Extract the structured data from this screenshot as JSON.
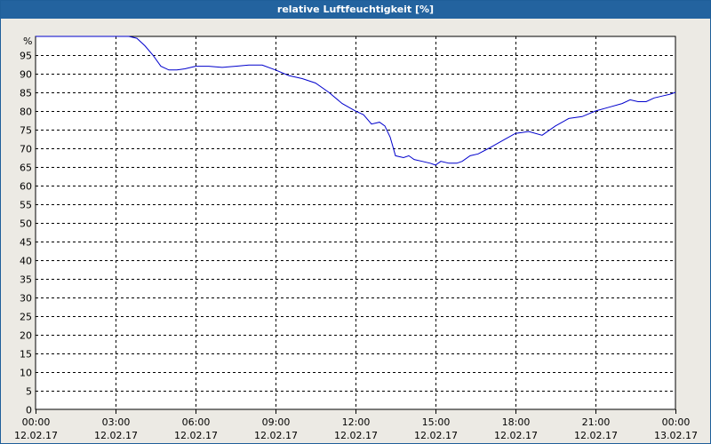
{
  "window": {
    "title": "relative Luftfeuchtigkeit [%]"
  },
  "chart_data": {
    "type": "line",
    "title": "relative Luftfeuchtigkeit [%]",
    "y_unit_label": "%",
    "ylim": [
      0,
      100
    ],
    "y_ticks": [
      0,
      5,
      10,
      15,
      20,
      25,
      30,
      35,
      40,
      45,
      50,
      55,
      60,
      65,
      70,
      75,
      80,
      85,
      90,
      95
    ],
    "x_ticks": [
      {
        "time": "00:00",
        "date": "12.02.17"
      },
      {
        "time": "03:00",
        "date": "12.02.17"
      },
      {
        "time": "06:00",
        "date": "12.02.17"
      },
      {
        "time": "09:00",
        "date": "12.02.17"
      },
      {
        "time": "12:00",
        "date": "12.02.17"
      },
      {
        "time": "15:00",
        "date": "12.02.17"
      },
      {
        "time": "18:00",
        "date": "12.02.17"
      },
      {
        "time": "21:00",
        "date": "12.02.17"
      },
      {
        "time": "00:00",
        "date": "13.02.17"
      }
    ],
    "x_range_hours": [
      0,
      24
    ],
    "grid": true,
    "colors": {
      "series": "#0000cc",
      "grid": "#000000",
      "plot_background": "#ffffff",
      "panel_background": "#eceae4",
      "titlebar": "#23639f"
    },
    "series": [
      {
        "x_hours": [
          0,
          1,
          2,
          3,
          3.5,
          3.8,
          4.1,
          4.4,
          4.7,
          5.0,
          5.3,
          5.6,
          6.0,
          6.5,
          7.0,
          7.5,
          8.0,
          8.5,
          9.0,
          9.5,
          10.0,
          10.5,
          11.0,
          11.5,
          12.0,
          12.3,
          12.6,
          12.9,
          13.1,
          13.3,
          13.5,
          13.8,
          14.0,
          14.2,
          14.5,
          14.8,
          15.0,
          15.2,
          15.5,
          15.8,
          16.0,
          16.3,
          16.6,
          17.0,
          17.5,
          18.0,
          18.5,
          19.0,
          19.5,
          20.0,
          20.5,
          21.0,
          21.5,
          22.0,
          22.3,
          22.6,
          22.9,
          23.2,
          23.5,
          23.8,
          24.0
        ],
        "values": [
          100,
          100,
          100,
          100,
          100,
          99.5,
          97.5,
          95,
          92,
          91,
          91,
          91.3,
          92,
          92,
          91.7,
          92,
          92.3,
          92.3,
          91,
          89.5,
          88.7,
          87.5,
          85,
          82,
          80,
          79,
          76.5,
          77,
          76,
          73,
          68,
          67.5,
          68,
          67,
          66.5,
          66,
          65.5,
          66.5,
          66,
          66,
          66.5,
          68,
          68.5,
          70,
          72,
          74,
          74.5,
          73.5,
          76,
          78,
          78.5,
          80,
          81,
          82,
          83,
          82.5,
          82.5,
          83.5,
          84,
          84.5,
          85
        ]
      }
    ]
  }
}
